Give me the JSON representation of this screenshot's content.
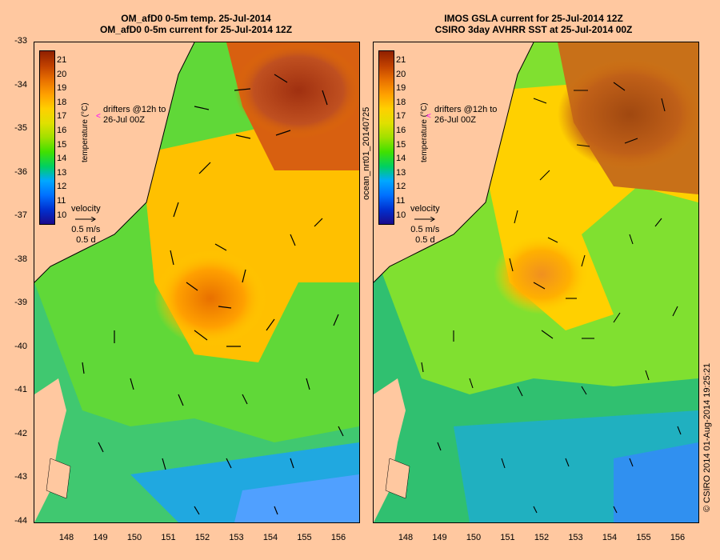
{
  "left_panel": {
    "title_line1": "OM_afD0 0-5m temp. 25-Jul-2014",
    "title_line2": "OM_afD0 0-5m current for 25-Jul-2014 12Z"
  },
  "right_panel": {
    "title_line1": "IMOS GSLA current for 25-Jul-2014 12Z",
    "title_line2": "CSIRO 3day AVHRR SST at 25-Jul-2014 00Z"
  },
  "colorbar": {
    "ticks": [
      "21",
      "20",
      "19",
      "18",
      "17",
      "16",
      "15",
      "14",
      "13",
      "12",
      "11",
      "10"
    ],
    "title": "temperature (°C)",
    "colors": [
      "#1a0a8c",
      "#0030d0",
      "#0070ff",
      "#00a8ff",
      "#00d060",
      "#40e000",
      "#a0e000",
      "#e0e000",
      "#ffd000",
      "#ffa000",
      "#e87000",
      "#c04000",
      "#902000"
    ]
  },
  "drifters_label_line1": "drifters @12h to",
  "drifters_label_line2": "26-Jul 00Z",
  "drifter_marker": "<",
  "velocity": {
    "label": "velocity",
    "speed": "0.5 m/s",
    "time": "0.5 d"
  },
  "axes": {
    "lat_ticks": [
      "-33",
      "-34",
      "-35",
      "-36",
      "-37",
      "-38",
      "-39",
      "-40",
      "-41",
      "-42",
      "-43",
      "-44"
    ],
    "lon_ticks": [
      "148",
      "149",
      "150",
      "151",
      "152",
      "153",
      "154",
      "155",
      "156"
    ]
  },
  "side_label": "ocean_nrt01_20140725",
  "stamp": "© CSIRO 2014   01-Aug-2014 19:25:21"
}
